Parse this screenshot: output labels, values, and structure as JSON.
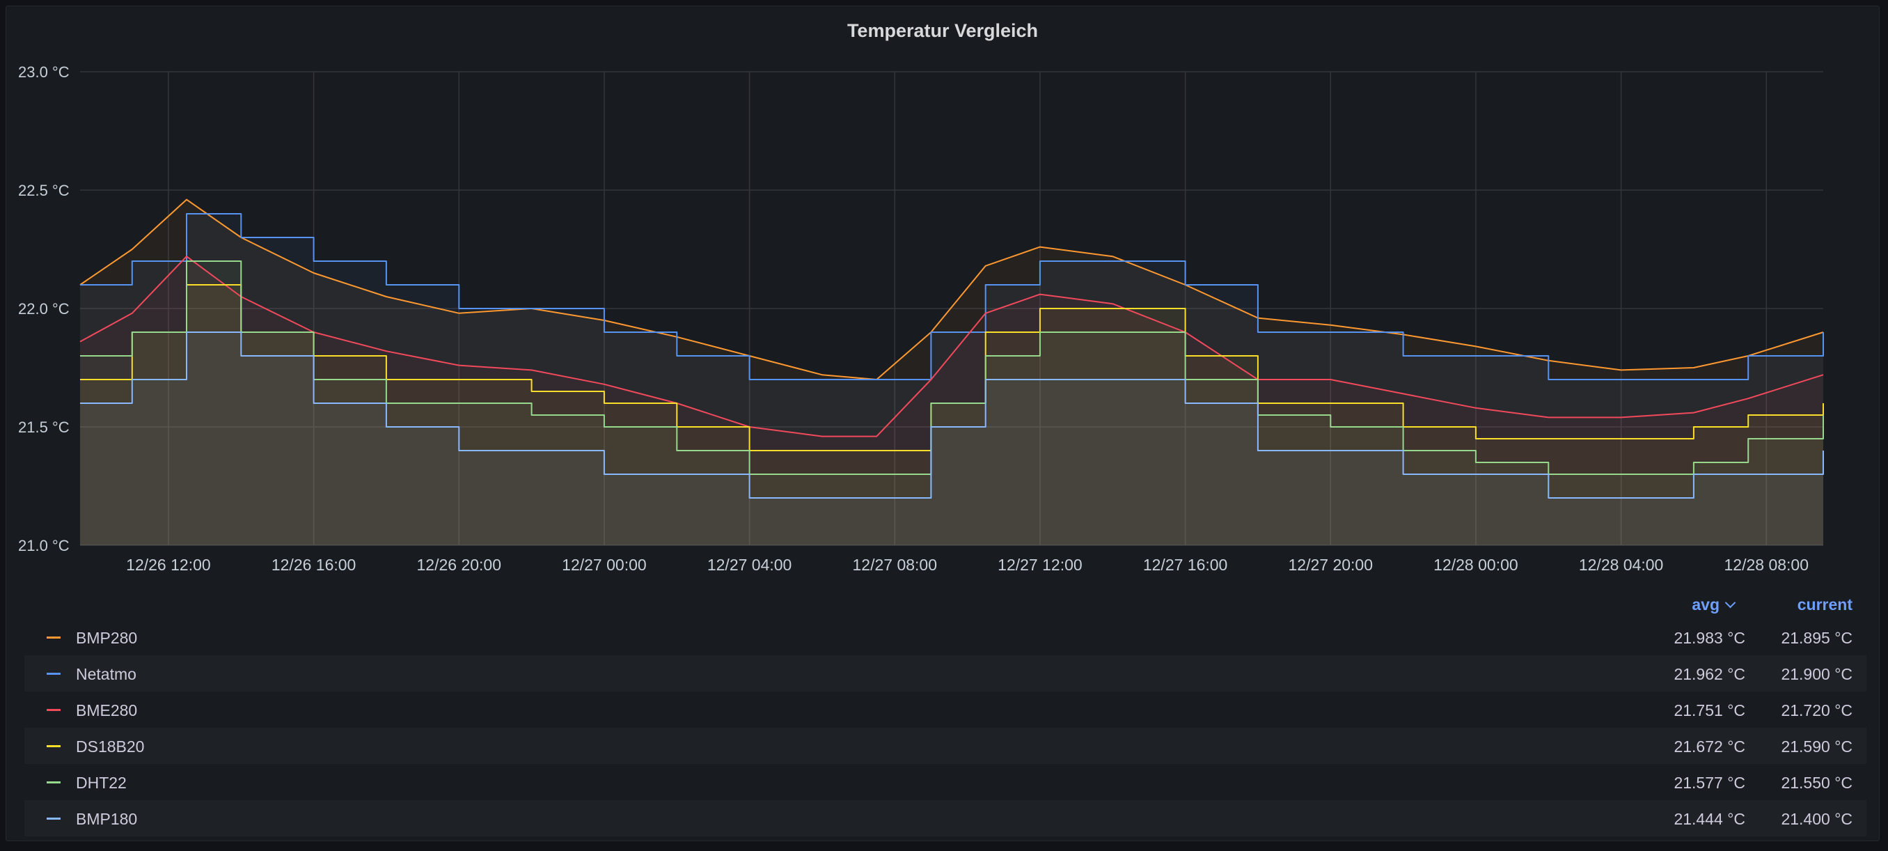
{
  "panel": {
    "title": "Temperatur Vergleich"
  },
  "legend": {
    "col_avg": "avg",
    "col_current": "current",
    "rows": [
      {
        "name": "BMP280",
        "color": "#ff9830",
        "avg": "21.983 °C",
        "current": "21.895 °C"
      },
      {
        "name": "Netatmo",
        "color": "#5794f2",
        "avg": "21.962 °C",
        "current": "21.900 °C"
      },
      {
        "name": "BME280",
        "color": "#f2495c",
        "avg": "21.751 °C",
        "current": "21.720 °C"
      },
      {
        "name": "DS18B20",
        "color": "#fade2a",
        "avg": "21.672 °C",
        "current": "21.590 °C"
      },
      {
        "name": "DHT22",
        "color": "#96d98d",
        "avg": "21.577 °C",
        "current": "21.550 °C"
      },
      {
        "name": "BMP180",
        "color": "#8ab8ff",
        "avg": "21.444 °C",
        "current": "21.400 °C"
      }
    ]
  },
  "chart_data": {
    "type": "line",
    "title": "Temperatur Vergleich",
    "yunit": "°C",
    "ylim": [
      21.0,
      23.0
    ],
    "yticks": [
      "21.0 °C",
      "21.5 °C",
      "22.0 °C",
      "22.5 °C",
      "23.0 °C"
    ],
    "xlim": [
      "12/26 09:34",
      "12/28 09:34"
    ],
    "xticks": [
      "12/26 12:00",
      "12/26 16:00",
      "12/26 20:00",
      "12/27 00:00",
      "12/27 04:00",
      "12/27 08:00",
      "12/27 12:00",
      "12/27 16:00",
      "12/27 20:00",
      "12/28 00:00",
      "12/28 04:00",
      "12/28 08:00"
    ],
    "grid": true,
    "fill": true,
    "x": [
      "12/26 09:34",
      "12/26 11:00",
      "12/26 12:30",
      "12/26 14:00",
      "12/26 16:00",
      "12/26 18:00",
      "12/26 20:00",
      "12/26 22:00",
      "12/27 00:00",
      "12/27 02:00",
      "12/27 04:00",
      "12/27 06:00",
      "12/27 07:30",
      "12/27 09:00",
      "12/27 10:30",
      "12/27 12:00",
      "12/27 14:00",
      "12/27 16:00",
      "12/27 18:00",
      "12/27 20:00",
      "12/27 22:00",
      "12/28 00:00",
      "12/28 02:00",
      "12/28 04:00",
      "12/28 06:00",
      "12/28 07:30",
      "12/28 09:34"
    ],
    "series": [
      {
        "name": "BMP280",
        "color": "#ff9830",
        "step": false,
        "values": [
          22.1,
          22.25,
          22.46,
          22.3,
          22.15,
          22.05,
          21.98,
          22.0,
          21.95,
          21.88,
          21.8,
          21.72,
          21.7,
          21.9,
          22.18,
          22.26,
          22.22,
          22.1,
          21.96,
          21.93,
          21.89,
          21.84,
          21.78,
          21.74,
          21.75,
          21.8,
          21.9
        ]
      },
      {
        "name": "Netatmo",
        "color": "#5794f2",
        "step": true,
        "values": [
          22.1,
          22.2,
          22.4,
          22.3,
          22.2,
          22.1,
          22.0,
          22.0,
          21.9,
          21.8,
          21.7,
          21.7,
          21.7,
          21.9,
          22.1,
          22.2,
          22.2,
          22.1,
          21.9,
          21.9,
          21.8,
          21.8,
          21.7,
          21.7,
          21.7,
          21.8,
          21.9
        ]
      },
      {
        "name": "BME280",
        "color": "#f2495c",
        "step": false,
        "values": [
          21.86,
          21.98,
          22.22,
          22.05,
          21.9,
          21.82,
          21.76,
          21.74,
          21.68,
          21.6,
          21.5,
          21.46,
          21.46,
          21.7,
          21.98,
          22.06,
          22.02,
          21.9,
          21.7,
          21.7,
          21.64,
          21.58,
          21.54,
          21.54,
          21.56,
          21.62,
          21.72
        ]
      },
      {
        "name": "DS18B20",
        "color": "#fade2a",
        "step": true,
        "values": [
          21.7,
          21.9,
          22.1,
          21.9,
          21.8,
          21.7,
          21.7,
          21.65,
          21.6,
          21.5,
          21.4,
          21.4,
          21.4,
          21.6,
          21.9,
          22.0,
          22.0,
          21.8,
          21.6,
          21.6,
          21.5,
          21.45,
          21.45,
          21.45,
          21.5,
          21.55,
          21.6
        ]
      },
      {
        "name": "DHT22",
        "color": "#96d98d",
        "step": true,
        "values": [
          21.8,
          21.9,
          22.2,
          21.9,
          21.7,
          21.6,
          21.6,
          21.55,
          21.5,
          21.4,
          21.3,
          21.3,
          21.3,
          21.6,
          21.8,
          21.9,
          21.9,
          21.7,
          21.55,
          21.5,
          21.4,
          21.35,
          21.3,
          21.3,
          21.35,
          21.45,
          21.55
        ]
      },
      {
        "name": "BMP180",
        "color": "#8ab8ff",
        "step": true,
        "values": [
          21.6,
          21.7,
          21.9,
          21.8,
          21.6,
          21.5,
          21.4,
          21.4,
          21.3,
          21.3,
          21.2,
          21.2,
          21.2,
          21.5,
          21.7,
          21.7,
          21.7,
          21.6,
          21.4,
          21.4,
          21.3,
          21.3,
          21.2,
          21.2,
          21.3,
          21.3,
          21.4
        ]
      }
    ]
  }
}
